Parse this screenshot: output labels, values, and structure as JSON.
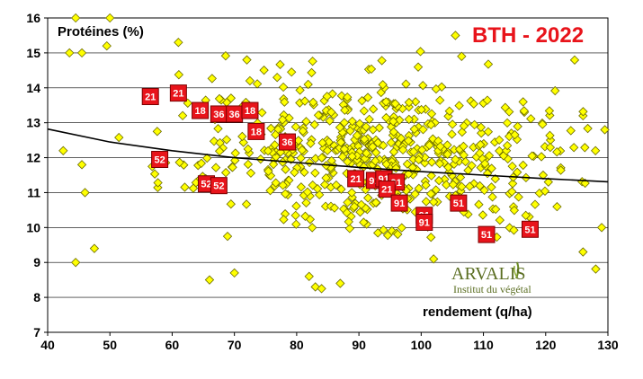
{
  "chart_data": {
    "type": "scatter",
    "title": "BTH - 2022",
    "xlabel": "rendement (q/ha)",
    "ylabel": "Protéines (%)",
    "xlim": [
      40,
      130
    ],
    "ylim": [
      7,
      16
    ],
    "xticks": [
      "40",
      "50",
      "60",
      "70",
      "80",
      "90",
      "100",
      "110",
      "120",
      "130"
    ],
    "yticks": [
      "7",
      "8",
      "9",
      "10",
      "11",
      "12",
      "13",
      "14",
      "15",
      "16"
    ],
    "grid": "horizontal",
    "colors": {
      "points": "#ffff00",
      "point_border": "#6b6b00",
      "tags": "#e8141b",
      "tag_border": "#7a0000",
      "trend": "#000000",
      "title": "#e8141b"
    },
    "trend_points": [
      [
        40,
        12.82
      ],
      [
        50,
        12.45
      ],
      [
        60,
        12.2
      ],
      [
        70,
        12.0
      ],
      [
        80,
        11.86
      ],
      [
        90,
        11.72
      ],
      [
        100,
        11.6
      ],
      [
        110,
        11.5
      ],
      [
        120,
        11.4
      ],
      [
        130,
        11.31
      ]
    ],
    "labeled_points": [
      {
        "x": 56.5,
        "y": 13.75,
        "label": "21"
      },
      {
        "x": 61,
        "y": 13.85,
        "label": "21"
      },
      {
        "x": 64.5,
        "y": 13.35,
        "label": "18"
      },
      {
        "x": 67.5,
        "y": 13.25,
        "label": "36"
      },
      {
        "x": 70,
        "y": 13.25,
        "label": "36"
      },
      {
        "x": 72.5,
        "y": 13.35,
        "label": "18"
      },
      {
        "x": 73.5,
        "y": 12.75,
        "label": "18"
      },
      {
        "x": 78.5,
        "y": 12.45,
        "label": "36"
      },
      {
        "x": 58,
        "y": 11.95,
        "label": "52"
      },
      {
        "x": 65.5,
        "y": 11.25,
        "label": "52"
      },
      {
        "x": 67.5,
        "y": 11.2,
        "label": "52"
      },
      {
        "x": 89.5,
        "y": 11.4,
        "label": "21"
      },
      {
        "x": 92.5,
        "y": 11.35,
        "label": "91"
      },
      {
        "x": 94,
        "y": 11.4,
        "label": "91"
      },
      {
        "x": 96,
        "y": 11.3,
        "label": "91"
      },
      {
        "x": 94.5,
        "y": 11.1,
        "label": "21"
      },
      {
        "x": 96.5,
        "y": 10.7,
        "label": "91"
      },
      {
        "x": 100.5,
        "y": 10.35,
        "label": "91"
      },
      {
        "x": 100.5,
        "y": 10.15,
        "label": "91"
      },
      {
        "x": 106,
        "y": 10.7,
        "label": "51"
      },
      {
        "x": 110.5,
        "y": 9.8,
        "label": "51"
      },
      {
        "x": 117.5,
        "y": 9.95,
        "label": "51"
      }
    ],
    "points": {
      "count": 620,
      "notable": [
        [
          44.5,
          16
        ],
        [
          50,
          16
        ],
        [
          43.5,
          15
        ],
        [
          45.5,
          15
        ],
        [
          49.5,
          15.2
        ],
        [
          61,
          15.3
        ],
        [
          72,
          14.8
        ],
        [
          105.5,
          15.5
        ],
        [
          106.5,
          14.9
        ],
        [
          42.5,
          12.2
        ],
        [
          45.5,
          11.8
        ],
        [
          46,
          11
        ],
        [
          47.5,
          9.4
        ],
        [
          44.5,
          9
        ],
        [
          66,
          8.5
        ],
        [
          70,
          8.7
        ],
        [
          82,
          8.6
        ],
        [
          83,
          8.3
        ],
        [
          84,
          8.25
        ],
        [
          87,
          8.4
        ],
        [
          102,
          9.1
        ],
        [
          126,
          9.3
        ],
        [
          129,
          10
        ],
        [
          129.5,
          12.8
        ],
        [
          128,
          12.2
        ],
        [
          126,
          13.2
        ]
      ]
    }
  },
  "logo": {
    "name": "ARVALIS",
    "tagline": "Institut du végétal"
  }
}
